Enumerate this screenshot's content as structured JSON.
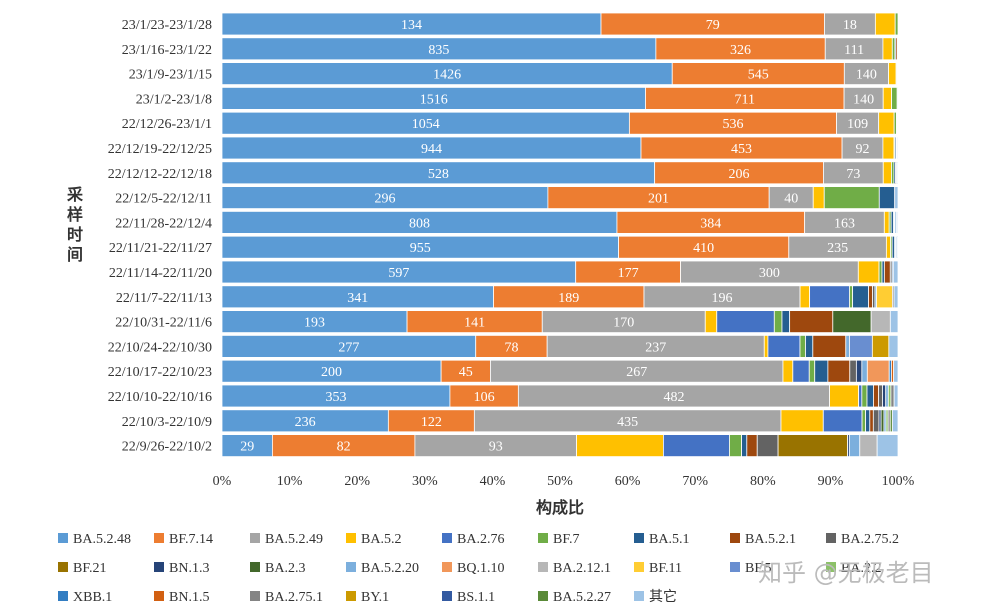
{
  "watermark": "知乎 @无极老目",
  "chart_data": {
    "type": "bar",
    "orientation": "horizontal",
    "stacked": "percent",
    "xlabel": "构成比",
    "ylabel": "采样时间",
    "xlim": [
      0,
      100
    ],
    "xticks": [
      "0%",
      "10%",
      "20%",
      "30%",
      "40%",
      "50%",
      "60%",
      "70%",
      "80%",
      "90%",
      "100%"
    ],
    "grid": false,
    "legend_position": "bottom",
    "categories": [
      "23/1/23-23/1/28",
      "23/1/16-23/1/22",
      "23/1/9-23/1/15",
      "23/1/2-23/1/8",
      "22/12/26-23/1/1",
      "22/12/19-22/12/25",
      "22/12/12-22/12/18",
      "22/12/5-22/12/11",
      "22/11/28-22/12/4",
      "22/11/21-22/11/27",
      "22/11/14-22/11/20",
      "22/11/7-22/11/13",
      "22/10/31-22/11/6",
      "22/10/24-22/10/30",
      "22/10/17-22/10/23",
      "22/10/10-22/10/16",
      "22/10/3-22/10/9",
      "22/9/26-22/10/2"
    ],
    "series": [
      {
        "name": "BA.5.2.48",
        "color": "#5B9BD5",
        "values": [
          134,
          835,
          1426,
          1516,
          1054,
          944,
          528,
          296,
          808,
          955,
          597,
          341,
          193,
          277,
          200,
          353,
          236,
          29
        ]
      },
      {
        "name": "BF.7.14",
        "color": "#ED7D31",
        "values": [
          79,
          326,
          545,
          711,
          536,
          453,
          206,
          201,
          384,
          410,
          177,
          189,
          141,
          78,
          45,
          106,
          122,
          82
        ]
      },
      {
        "name": "BA.5.2.49",
        "color": "#A5A5A5",
        "values": [
          18,
          111,
          140,
          140,
          109,
          92,
          73,
          40,
          163,
          235,
          300,
          196,
          170,
          237,
          267,
          482,
          435,
          93
        ]
      },
      {
        "name": "BA.5.2",
        "color": "#FFC000",
        "values": [
          7,
          18,
          24,
          30,
          40,
          25,
          10,
          10,
          10,
          10,
          35,
          12,
          12,
          4,
          9,
          45,
          60,
          50
        ]
      },
      {
        "name": "BA.2.76",
        "color": "#4472C4",
        "values": [
          0,
          0,
          0,
          0,
          0,
          0,
          0,
          0,
          0,
          0,
          0,
          50,
          60,
          35,
          15,
          5,
          55,
          38
        ]
      },
      {
        "name": "BF.7",
        "color": "#70AD47",
        "values": [
          1,
          5,
          3,
          20,
          6,
          2,
          3,
          50,
          4,
          4,
          5,
          4,
          8,
          6,
          5,
          8,
          5,
          7
        ]
      },
      {
        "name": "BA.5.1",
        "color": "#255E91",
        "values": [
          0,
          2,
          1,
          0,
          1,
          3,
          2,
          14,
          5,
          6,
          4,
          20,
          8,
          8,
          12,
          10,
          6,
          3
        ]
      },
      {
        "name": "BA.5.2.1",
        "color": "#9E480E",
        "values": [
          0,
          3,
          1,
          0,
          1,
          1,
          1,
          0,
          1,
          1,
          10,
          5,
          45,
          36,
          20,
          8,
          5,
          6
        ]
      },
      {
        "name": "BA.2.75.2",
        "color": "#636363",
        "values": [
          0,
          0,
          0,
          0,
          0,
          0,
          0,
          0,
          0,
          0,
          3,
          3,
          0,
          0,
          6,
          6,
          8,
          12
        ]
      },
      {
        "name": "BF.21",
        "color": "#997300",
        "values": [
          0,
          0,
          0,
          0,
          0,
          0,
          0,
          0,
          0,
          0,
          0,
          0,
          0,
          0,
          0,
          0,
          0,
          40
        ]
      },
      {
        "name": "BN.1.3",
        "color": "#264478",
        "values": [
          0,
          0,
          0,
          0,
          0,
          0,
          0,
          0,
          1,
          1,
          0,
          0,
          0,
          0,
          5,
          5,
          3,
          1
        ]
      },
      {
        "name": "BA.2.3",
        "color": "#43682B",
        "values": [
          0,
          0,
          0,
          0,
          0,
          0,
          0,
          0,
          0,
          0,
          0,
          0,
          40,
          0,
          0,
          0,
          4,
          0
        ]
      },
      {
        "name": "BA.5.2.20",
        "color": "#7CAFDD",
        "values": [
          0,
          0,
          0,
          0,
          0,
          0,
          0,
          0,
          3,
          3,
          0,
          2,
          0,
          4,
          5,
          4,
          3,
          6
        ]
      },
      {
        "name": "BQ.1.10",
        "color": "#F1975A",
        "values": [
          0,
          0,
          0,
          0,
          0,
          0,
          0,
          0,
          0,
          0,
          0,
          0,
          0,
          0,
          20,
          0,
          0,
          0
        ]
      },
      {
        "name": "BA.2.12.1",
        "color": "#B7B7B7",
        "values": [
          0,
          0,
          0,
          0,
          0,
          0,
          0,
          0,
          0,
          0,
          0,
          0,
          20,
          0,
          0,
          0,
          0,
          10
        ]
      },
      {
        "name": "BF.11",
        "color": "#FFCD33",
        "values": [
          0,
          0,
          0,
          0,
          0,
          0,
          0,
          0,
          0,
          0,
          0,
          20,
          0,
          0,
          0,
          0,
          0,
          0
        ]
      },
      {
        "name": "BF.5",
        "color": "#698ED0",
        "values": [
          0,
          0,
          0,
          0,
          0,
          0,
          0,
          0,
          0,
          0,
          0,
          0,
          0,
          25,
          0,
          0,
          0,
          0
        ]
      },
      {
        "name": "BA.2.2",
        "color": "#8CC168",
        "values": [
          0,
          0,
          0,
          0,
          0,
          0,
          0,
          0,
          0,
          0,
          0,
          0,
          0,
          0,
          0,
          4,
          3,
          0
        ]
      },
      {
        "name": "XBB.1",
        "color": "#327DC2",
        "values": [
          0,
          0,
          0,
          0,
          0,
          1,
          1,
          0,
          2,
          1,
          2,
          0,
          0,
          0,
          2,
          0,
          0,
          0
        ]
      },
      {
        "name": "BN.1.5",
        "color": "#D26012",
        "values": [
          0,
          0,
          0,
          0,
          0,
          0,
          0,
          0,
          0,
          0,
          0,
          0,
          0,
          0,
          2,
          0,
          0,
          0
        ]
      },
      {
        "name": "BA.2.75.1",
        "color": "#848484",
        "values": [
          0,
          0,
          0,
          0,
          0,
          0,
          0,
          0,
          0,
          0,
          0,
          2,
          0,
          0,
          0,
          5,
          3,
          0
        ]
      },
      {
        "name": "BY.1",
        "color": "#CC9A00",
        "values": [
          0,
          0,
          0,
          0,
          0,
          0,
          0,
          0,
          0,
          0,
          0,
          0,
          0,
          18,
          0,
          0,
          0,
          0
        ]
      },
      {
        "name": "BS.1.1",
        "color": "#335AA1",
        "values": [
          0,
          0,
          0,
          0,
          0,
          0,
          0,
          0,
          0,
          0,
          0,
          0,
          0,
          0,
          0,
          0,
          0,
          0
        ]
      },
      {
        "name": "BA.5.2.27",
        "color": "#5A8A38",
        "values": [
          0,
          0,
          0,
          0,
          0,
          0,
          0,
          0,
          0,
          0,
          0,
          0,
          0,
          0,
          0,
          0,
          3,
          0
        ]
      },
      {
        "name": "其它",
        "color": "#9DC3E6",
        "values": [
          0,
          1,
          1,
          3,
          2,
          2,
          1,
          3,
          2,
          2,
          8,
          5,
          8,
          10,
          4,
          6,
          8,
          12
        ]
      }
    ],
    "data_labels": [
      [
        134,
        79,
        18
      ],
      [
        835,
        326,
        111
      ],
      [
        1426,
        545,
        140
      ],
      [
        1516,
        711,
        140
      ],
      [
        1054,
        536,
        109
      ],
      [
        944,
        453,
        92
      ],
      [
        528,
        206,
        73
      ],
      [
        296,
        201,
        40
      ],
      [
        808,
        384,
        163
      ],
      [
        955,
        410,
        235
      ],
      [
        597,
        177,
        300
      ],
      [
        341,
        189,
        196
      ],
      [
        193,
        141,
        170
      ],
      [
        277,
        78,
        237
      ],
      [
        200,
        45,
        267
      ],
      [
        353,
        106,
        482
      ],
      [
        236,
        122,
        435
      ],
      [
        29,
        82,
        93
      ]
    ]
  }
}
